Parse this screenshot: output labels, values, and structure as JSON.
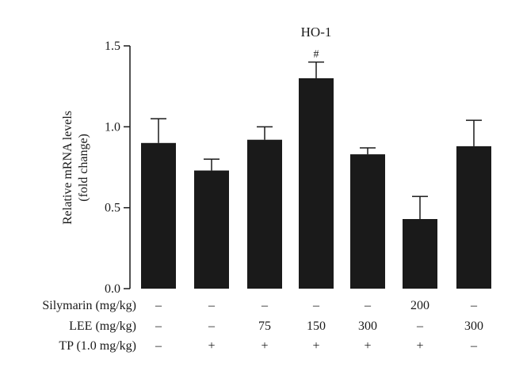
{
  "chart_data": {
    "type": "bar",
    "title": "HO-1",
    "ylabel_line1": "Relative mRNA levels",
    "ylabel_line2": "(fold change)",
    "ylim": [
      0,
      1.5
    ],
    "yticks": [
      "0.0",
      "0.5",
      "1.0",
      "1.5"
    ],
    "ytick_values": [
      0,
      0.5,
      1.0,
      1.5
    ],
    "bar_color": "#1a1a1a",
    "values": [
      0.9,
      0.73,
      0.92,
      1.3,
      0.83,
      0.43,
      0.88
    ],
    "errors": [
      0.15,
      0.07,
      0.08,
      0.1,
      0.04,
      0.14,
      0.16
    ],
    "annotations": [
      "",
      "",
      "",
      "#",
      "",
      "",
      ""
    ],
    "conditions": [
      {
        "label": "Silymarin (mg/kg)",
        "values": [
          "–",
          "–",
          "–",
          "–",
          "–",
          "200",
          "–"
        ]
      },
      {
        "label": "LEE (mg/kg)",
        "values": [
          "–",
          "–",
          "75",
          "150",
          "300",
          "–",
          "300"
        ]
      },
      {
        "label": "TP (1.0 mg/kg)",
        "values": [
          "–",
          "+",
          "+",
          "+",
          "+",
          "+",
          "–"
        ]
      }
    ]
  }
}
